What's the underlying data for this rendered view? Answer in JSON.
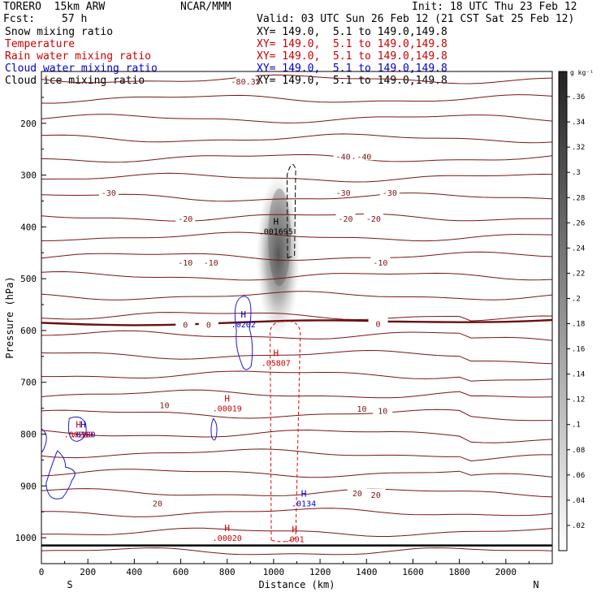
{
  "header": {
    "model": "TORERO  15km ARW",
    "org": "NCAR/MMM",
    "init": "Init: 18 UTC Thu 23 Feb 12",
    "fcst_label": "Fcst:",
    "fcst_value": "57 h",
    "valid": "Valid: 03 UTC Sun 26 Feb 12 (21 CST Sat 25 Feb 12)"
  },
  "legend": [
    {
      "label": "Snow mixing ratio",
      "xy": "XY= 149.0,  5.1 to 149.0,149.8",
      "color": "#000000"
    },
    {
      "label": "Temperature",
      "xy": "XY= 149.0,  5.1 to 149.0,149.8",
      "color": "#cc0000"
    },
    {
      "label": "Rain water mixing ratio",
      "xy": "XY= 149.0,  5.1 to 149.0,149.8",
      "color": "#cc0000"
    },
    {
      "label": "Cloud water mixing ratio",
      "xy": "XY= 149.0,  5.1 to 149.0,149.8",
      "color": "#0000cc"
    },
    {
      "label": "Cloud ice mixing ratio",
      "xy": "XY= 149.0,  5.1 to 149.0,149.8",
      "color": "#000000"
    }
  ],
  "chart_data": {
    "type": "contour cross-section",
    "xlabel": "Distance (km)",
    "ylabel": "Pressure (hPa)",
    "x_ticks": [
      0,
      200,
      400,
      600,
      800,
      1000,
      1200,
      1400,
      1600,
      1800,
      2000
    ],
    "xlim": [
      0,
      2200
    ],
    "y_ticks": [
      200,
      300,
      400,
      500,
      600,
      700,
      800,
      900,
      1000
    ],
    "ylim": [
      1050,
      100
    ],
    "end_left": "S",
    "end_right": "N",
    "colorbar": {
      "unit": "g kg⁻¹",
      "ticks": [
        ".02",
        ".04",
        ".06",
        ".08",
        ".1",
        ".12",
        ".14",
        ".16",
        ".18",
        ".2",
        ".22",
        ".24",
        ".26",
        ".28",
        ".3",
        ".32",
        ".34",
        ".36"
      ]
    },
    "isotherms": [
      {
        "label": "-40",
        "p": 265
      },
      {
        "label": "-30",
        "p": 335
      },
      {
        "label": "-20",
        "p": 385
      },
      {
        "label": "-10",
        "p": 470
      },
      {
        "label": "0",
        "p": 585
      },
      {
        "label": "10",
        "p": 750
      },
      {
        "label": "20",
        "p": 925
      }
    ],
    "temperature_labels": [
      {
        "text": "-80.35",
        "x": 880,
        "p": 120
      },
      {
        "text": "-40",
        "x": 1300,
        "p": 265
      },
      {
        "text": "-40",
        "x": 1390,
        "p": 265
      },
      {
        "text": "-30",
        "x": 290,
        "p": 335
      },
      {
        "text": "-30",
        "x": 1300,
        "p": 335
      },
      {
        "text": "-30",
        "x": 1500,
        "p": 335
      },
      {
        "text": "-20",
        "x": 620,
        "p": 385
      },
      {
        "text": "-20",
        "x": 1310,
        "p": 385
      },
      {
        "text": "-20",
        "x": 1430,
        "p": 385
      },
      {
        "text": "-10",
        "x": 620,
        "p": 470
      },
      {
        "text": "-10",
        "x": 730,
        "p": 470
      },
      {
        "text": "-10",
        "x": 1460,
        "p": 470
      },
      {
        "text": "0",
        "x": 620,
        "p": 590
      },
      {
        "text": "0",
        "x": 720,
        "p": 590
      },
      {
        "text": "0",
        "x": 1450,
        "p": 588
      },
      {
        "text": "10",
        "x": 530,
        "p": 745
      },
      {
        "text": "10",
        "x": 1380,
        "p": 752
      },
      {
        "text": "10",
        "x": 1470,
        "p": 756
      },
      {
        "text": "20",
        "x": 500,
        "p": 935
      },
      {
        "text": "20",
        "x": 1360,
        "p": 915
      },
      {
        "text": "20",
        "x": 1440,
        "p": 918
      }
    ],
    "maxima": [
      {
        "text": ".001695",
        "x": 1010,
        "p": 411,
        "color": "#000000"
      },
      {
        "text": ".0202",
        "x": 870,
        "p": 591,
        "color": "#0000cc"
      },
      {
        "text": ".05807",
        "x": 1010,
        "p": 665,
        "color": "#cc0000"
      },
      {
        "text": ".00019",
        "x": 800,
        "p": 753,
        "color": "#cc0000"
      },
      {
        "text": ".0180",
        "x": 180,
        "p": 803,
        "color": "#0000cc"
      },
      {
        "text": ".00280",
        "x": 160,
        "p": 803,
        "color": "#cc0000"
      },
      {
        "text": ".0134",
        "x": 1130,
        "p": 936,
        "color": "#0000cc"
      },
      {
        "text": ".00020",
        "x": 800,
        "p": 1003,
        "color": "#cc0000"
      },
      {
        "text": ".001",
        "x": 1090,
        "p": 1005,
        "color": "#cc0000"
      }
    ]
  }
}
